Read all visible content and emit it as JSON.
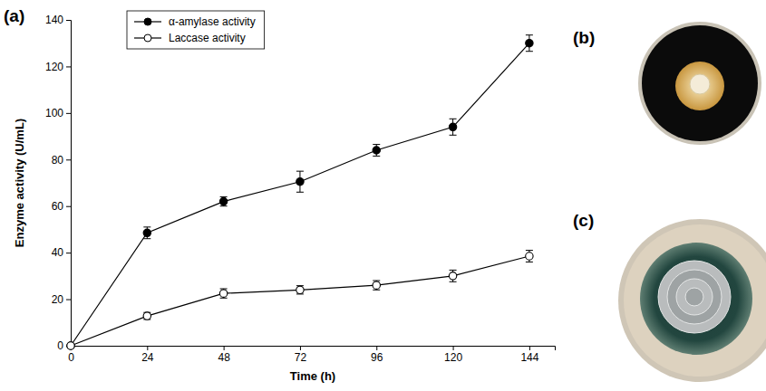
{
  "chart_data": {
    "type": "line",
    "x_label": "Time (h)",
    "y_label": "Enzyme activity (U/mL)",
    "x": [
      0,
      24,
      48,
      72,
      96,
      120,
      144
    ],
    "series": [
      {
        "name": "α-amylase activity",
        "color": "#000000",
        "marker": "filled-circle",
        "line_style": "solid",
        "values": [
          0,
          48.5,
          62,
          70.5,
          84,
          94,
          130
        ],
        "errors": [
          0,
          2.5,
          2,
          4.5,
          2.5,
          3.5,
          3.5
        ]
      },
      {
        "name": "Laccase activity",
        "color": "#000000",
        "marker": "open-circle",
        "line_style": "solid",
        "values": [
          0,
          12.8,
          22.5,
          24,
          26,
          30,
          38.5
        ],
        "errors": [
          0,
          1.5,
          2,
          1.8,
          2,
          2.5,
          2.5
        ]
      }
    ],
    "xlim": [
      0,
      152
    ],
    "xticks": [
      0,
      24,
      48,
      72,
      96,
      120,
      144
    ],
    "ylim": [
      0,
      140
    ],
    "yticks": [
      0,
      20,
      40,
      60,
      80,
      100,
      120,
      140
    ],
    "legend": "upper left",
    "grid": false
  },
  "panel_labels": [
    "(a)",
    "(b)",
    "(c)"
  ]
}
